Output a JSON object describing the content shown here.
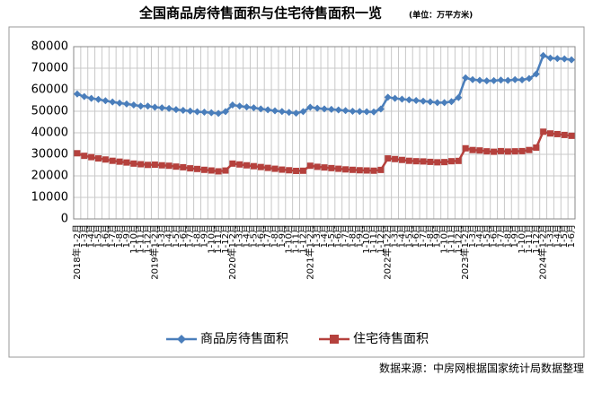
{
  "chart_data": {
    "type": "line",
    "title": "全国商品房待售面积与住宅待售面积一览",
    "subtitle": "(单位：万平方米)",
    "source": "数据来源：中房网根据国家统计局数据整理",
    "categories": [
      "2018年1-2月",
      "1-3月",
      "1-4月",
      "1-5月",
      "1-6月",
      "1-7月",
      "1-8月",
      "1-9月",
      "1-10月",
      "1-11月",
      "1-12月",
      "2019年1-2月",
      "1-3月",
      "1-4月",
      "1-5月",
      "1-6月",
      "1-7月",
      "1-8月",
      "1-9月",
      "1-10月",
      "1-11月",
      "1-12月",
      "2020年1-2月",
      "1-3月",
      "1-4月",
      "1-5月",
      "1-6月",
      "1-7月",
      "1-8月",
      "1-9月",
      "1-10月",
      "1-11月",
      "1-12月",
      "2021年1-2月",
      "1-3月",
      "1-4月",
      "1-5月",
      "1-6月",
      "1-7月",
      "1-8月",
      "1-9月",
      "1-10月",
      "1-11月",
      "1-12月",
      "2022年1-2月",
      "1-3月",
      "1-4月",
      "1-5月",
      "1-6月",
      "1-7月",
      "1-8月",
      "1-9月",
      "1-10月",
      "1-11月",
      "1-12月",
      "2023年1-2月",
      "1-3月",
      "1-4月",
      "1-5月",
      "1-6月",
      "1-7月",
      "1-8月",
      "1-9月",
      "1-10月",
      "1-11月",
      "1-12月",
      "2024年1-2月",
      "1-3月",
      "1-4月",
      "1-5月",
      "1-6月"
    ],
    "series": [
      {
        "name": "商品房待售面积",
        "color": "#4a7ebb",
        "marker": "diamond",
        "values": [
          58000,
          56800,
          56000,
          55500,
          54900,
          54300,
          53800,
          53400,
          52900,
          52400,
          52414,
          51900,
          51600,
          51300,
          50800,
          50400,
          50100,
          49800,
          49600,
          49300,
          49000,
          49821,
          52900,
          52400,
          52000,
          51600,
          51100,
          50700,
          50200,
          49900,
          49500,
          49100,
          49850,
          51900,
          51400,
          51100,
          50900,
          50600,
          50300,
          50000,
          49900,
          49800,
          49700,
          51023,
          56500,
          56000,
          55600,
          55300,
          55000,
          54700,
          54400,
          54000,
          54000,
          54500,
          56366,
          65500,
          64700,
          64400,
          64100,
          64200,
          64500,
          64300,
          64700,
          64600,
          65200,
          67295,
          75900,
          74700,
          74500,
          74300,
          73900
        ]
      },
      {
        "name": "住宅待售面积",
        "color": "#b5413d",
        "marker": "square",
        "values": [
          30500,
          29300,
          28700,
          28100,
          27600,
          27000,
          26600,
          26200,
          25700,
          25400,
          25091,
          25200,
          24900,
          24700,
          24300,
          24000,
          23500,
          23200,
          22800,
          22500,
          22100,
          22473,
          25700,
          25300,
          24900,
          24500,
          24100,
          23700,
          23300,
          22900,
          22600,
          22300,
          22379,
          24700,
          24200,
          23900,
          23600,
          23300,
          23000,
          22800,
          22600,
          22500,
          22400,
          22761,
          28100,
          27800,
          27400,
          27000,
          26800,
          26700,
          26500,
          26300,
          26400,
          26800,
          26947,
          32800,
          32000,
          31800,
          31400,
          31200,
          31500,
          31300,
          31400,
          31500,
          32000,
          33119,
          40500,
          39700,
          39400,
          39000,
          38600
        ]
      }
    ],
    "ylim": [
      0,
      80000
    ],
    "yticks": [
      0,
      10000,
      20000,
      30000,
      40000,
      50000,
      60000,
      70000,
      80000
    ],
    "grid": true
  }
}
